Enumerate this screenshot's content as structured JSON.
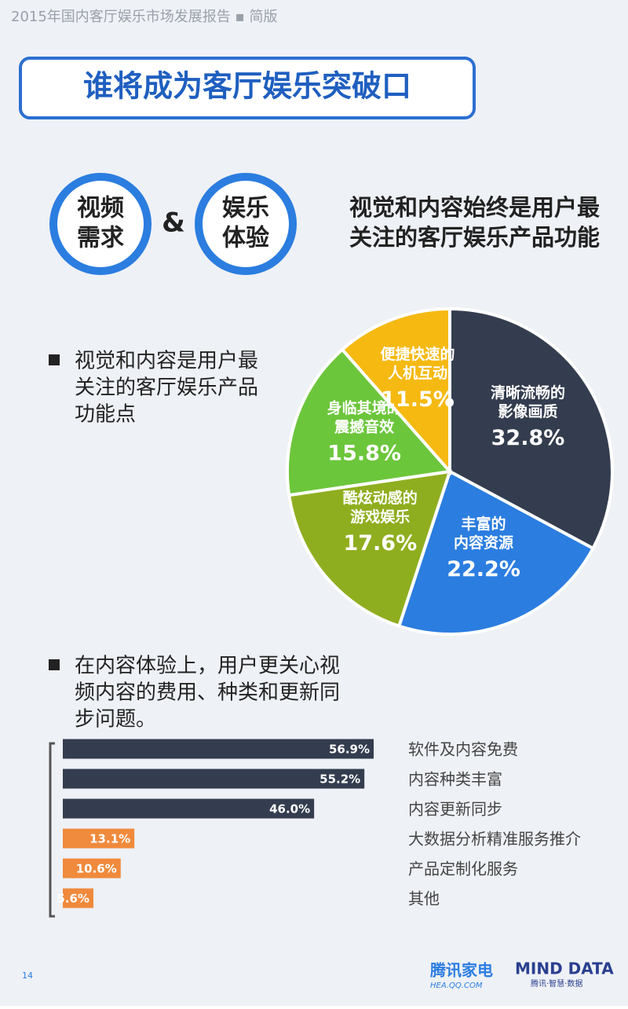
{
  "header": "2015年国内客厅娱乐市场发展报告 ▪ 简版",
  "title": "谁将成为客厅娱乐突破口",
  "badges": [
    [
      "视频",
      "需求"
    ],
    [
      "娱乐",
      "体验"
    ]
  ],
  "ampersand": "&",
  "headline": [
    "视觉和内容始终是用户最",
    "关注的客厅娱乐产品功能"
  ],
  "notes": [
    [
      "视觉和内容是用户最",
      "关注的客厅娱乐产品",
      "功能点"
    ],
    [
      "在内容体验上，用户更关心视",
      "频内容的费用、种类和更新同",
      "步问题。"
    ]
  ],
  "chart_data": [
    {
      "type": "pie",
      "categories": [
        [
          "清晰流畅的",
          "影像画质"
        ],
        [
          "丰富的",
          "内容资源"
        ],
        [
          "酷炫动感的",
          "游戏娱乐"
        ],
        [
          "身临其境的",
          "震撼音效"
        ],
        [
          "便捷快速的",
          "人机互动"
        ]
      ],
      "values": [
        32.8,
        22.2,
        17.6,
        15.8,
        11.5
      ],
      "value_labels": [
        "32.8%",
        "22.2%",
        "17.6%",
        "15.8%",
        "11.5%"
      ],
      "colors": [
        "#343d4f",
        "#2b7de0",
        "#8fae1f",
        "#6cc63b",
        "#f5b912"
      ]
    },
    {
      "type": "hbar",
      "categories": [
        "软件及内容免费",
        "内容种类丰富",
        "内容更新同步",
        "大数据分析精准服务推介",
        "产品定制化服务",
        "其他"
      ],
      "values": [
        56.9,
        55.2,
        46,
        13.1,
        10.6,
        5.6
      ],
      "value_labels": [
        "56.9%",
        "55.2%",
        "46.0%",
        "13.1%",
        "10.6%",
        "5.6%"
      ],
      "colors": [
        "#343d4f",
        "#343d4f",
        "#343d4f",
        "#f08a3c",
        "#f08a3c",
        "#f08a3c"
      ]
    }
  ],
  "page_number": "14",
  "logos": [
    "腾讯家电",
    "HEA.QQ.COM",
    "MIND DATA",
    "腾讯·智慧·数据"
  ]
}
